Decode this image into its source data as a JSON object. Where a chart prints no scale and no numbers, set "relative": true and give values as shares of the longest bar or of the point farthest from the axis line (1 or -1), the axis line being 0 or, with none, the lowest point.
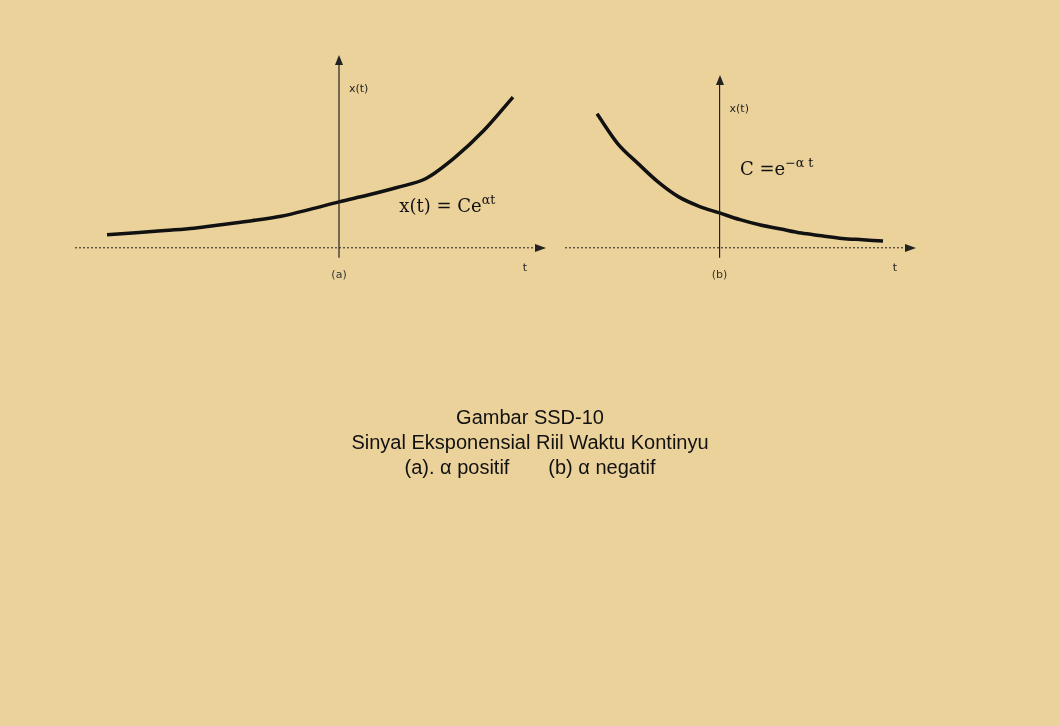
{
  "chart_data": [
    {
      "type": "line",
      "relative": true,
      "color": "#111111",
      "xlabel": "t",
      "ylabel": "x(t)",
      "legend": false,
      "grid": false,
      "marker": "none",
      "categories": [
        null,
        null,
        null,
        null,
        null,
        null,
        null,
        null,
        null,
        null,
        null,
        null,
        null,
        null,
        null
      ],
      "values": [
        0.086,
        0.1,
        0.115,
        0.13,
        0.155,
        0.18,
        0.21,
        0.255,
        0.305,
        0.35,
        0.4,
        0.46,
        0.6,
        0.78,
        1.0
      ],
      "annotations": [
        "(a)",
        "x(t) = Ce$^{αt}$"
      ]
    },
    {
      "type": "line",
      "relative": true,
      "color": "#111111",
      "xlabel": "t",
      "ylabel": "x(t)",
      "legend": false,
      "grid": false,
      "marker": "none",
      "categories": [
        null,
        null,
        null,
        null,
        null,
        null,
        null,
        null,
        null,
        null,
        null,
        null,
        null,
        null,
        null
      ],
      "values": [
        1.0,
        0.78,
        0.63,
        0.49,
        0.38,
        0.31,
        0.26,
        0.21,
        0.17,
        0.14,
        0.11,
        0.09,
        0.07,
        0.06,
        0.05
      ],
      "annotations": [
        "(b)",
        "C =e$^{−α t}$"
      ]
    },
    {
      "type": "other",
      "title": "Gambar SSD-10",
      "subtitle": "Sinyal Eksponensial Riil Waktu Kontinyu",
      "annotations": [
        "(a). α positif       (b) α negatif"
      ]
    }
  ]
}
